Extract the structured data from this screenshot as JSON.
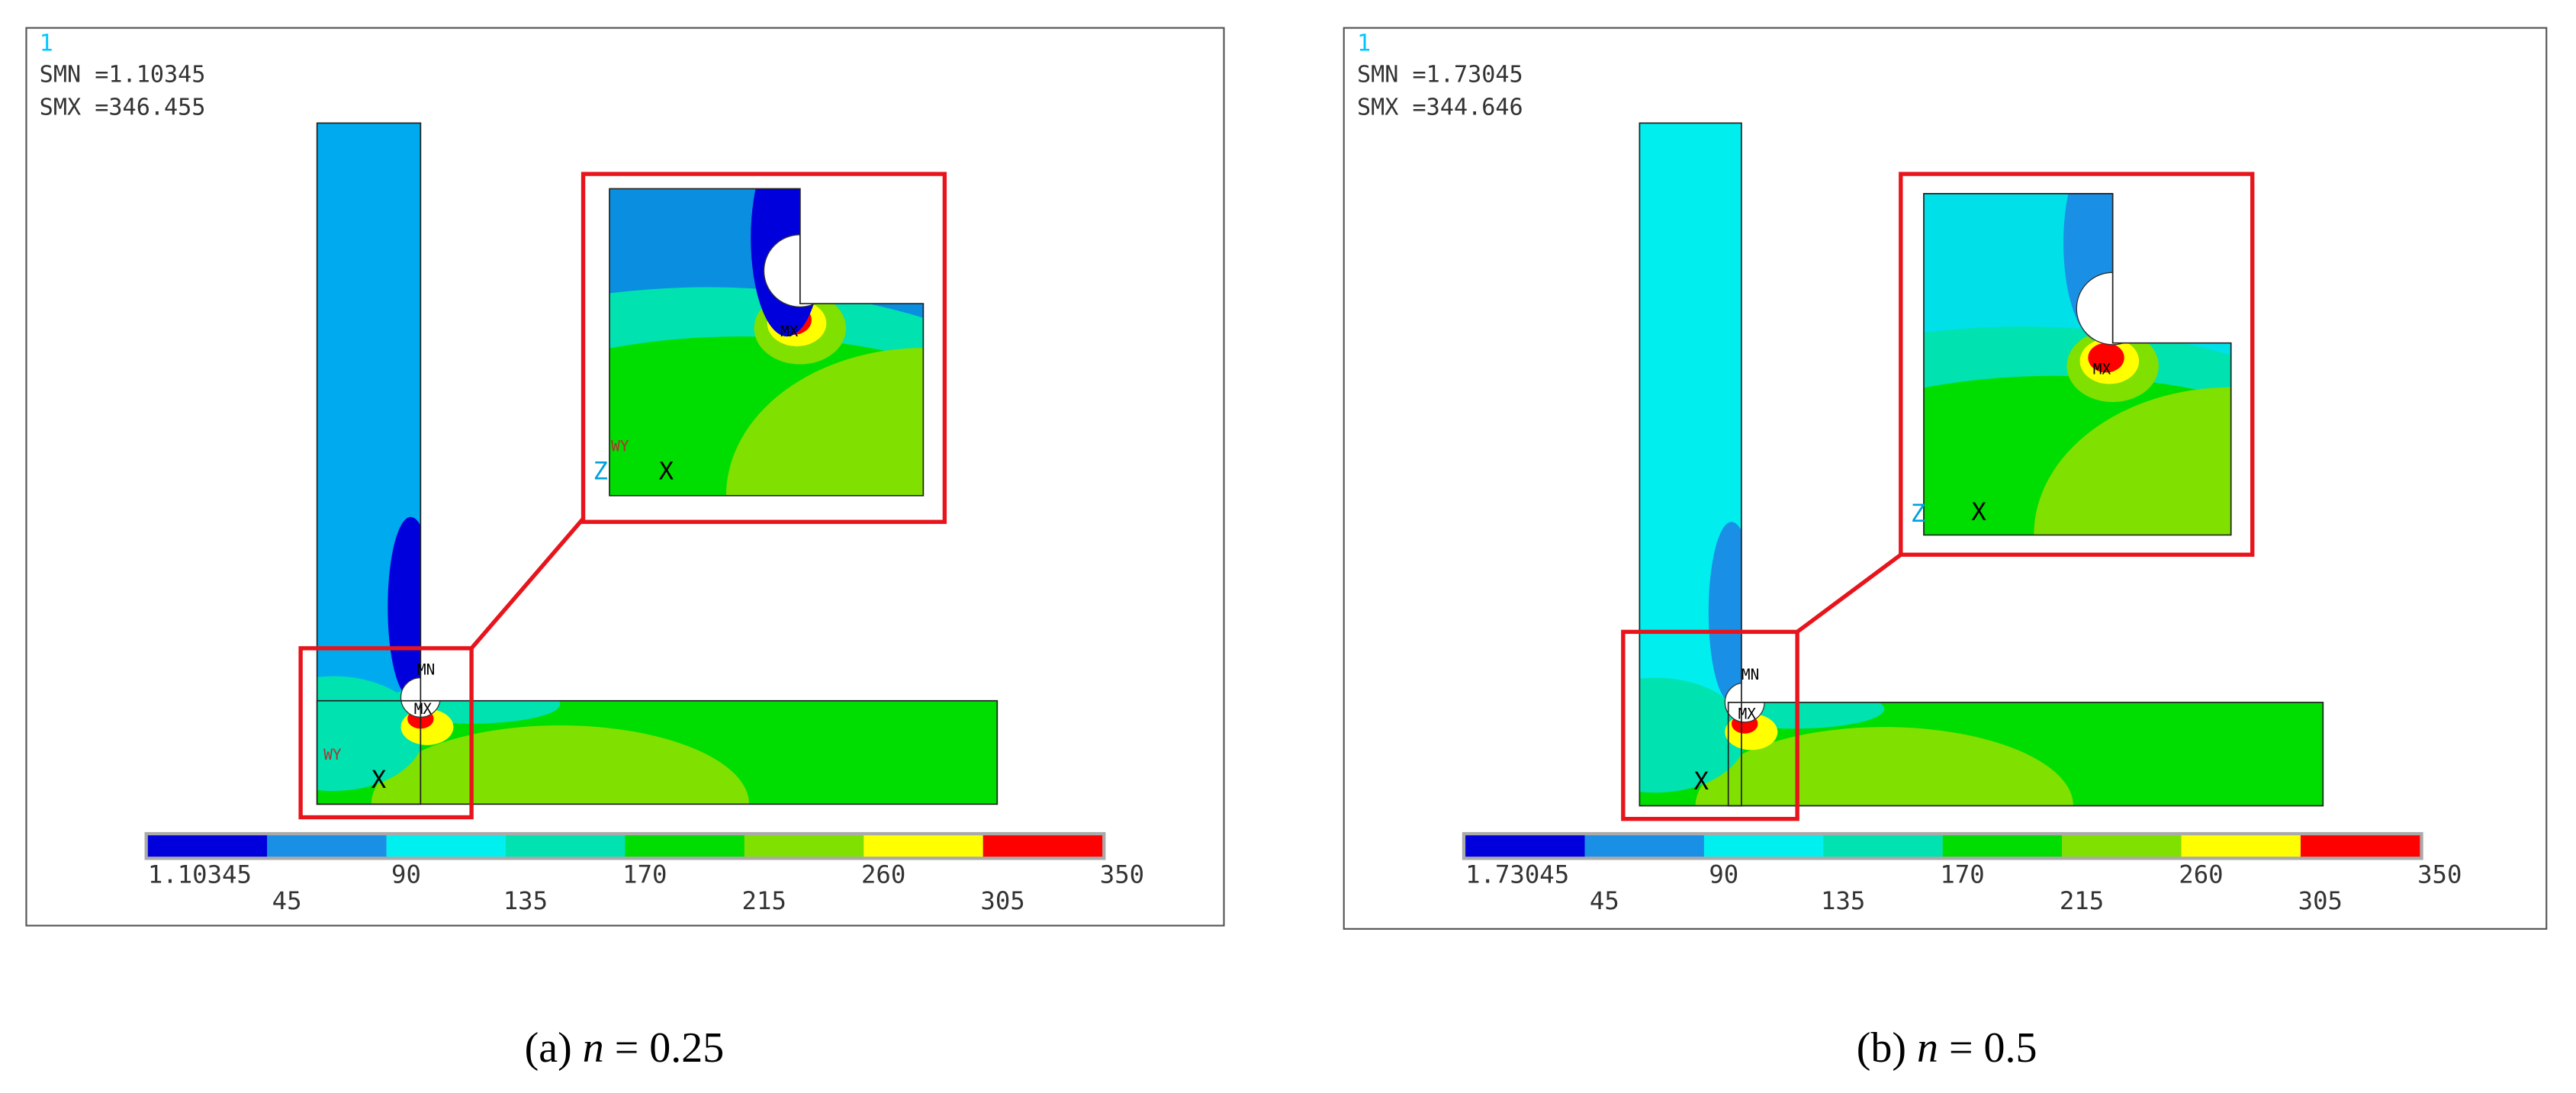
{
  "panels": [
    {
      "set_label": "1",
      "smn": "SMN =1.10345",
      "smx": "SMX =346.455",
      "legend": [
        "1.10345",
        "45",
        "90",
        "135",
        "170",
        "215",
        "260",
        "305",
        "350"
      ],
      "mn": "MN",
      "mx": "MX",
      "inset_mx": "MX",
      "triad_labels": [
        "WY",
        "X",
        "WY",
        "Z",
        "X"
      ],
      "caption": {
        "prefix": "(a) ",
        "variable": "n",
        "suffix": " = 0.25"
      }
    },
    {
      "set_label": "1",
      "smn": "SMN =1.73045",
      "smx": "SMX =344.646",
      "legend": [
        "1.73045",
        "45",
        "90",
        "135",
        "170",
        "215",
        "260",
        "305",
        "350"
      ],
      "mn": "MN",
      "mx": "MX",
      "inset_mx": "MX",
      "triad_labels": [
        "X",
        "Z",
        "X"
      ],
      "caption": {
        "prefix": "(b) ",
        "variable": "n",
        "suffix": " = 0.5"
      }
    }
  ]
}
